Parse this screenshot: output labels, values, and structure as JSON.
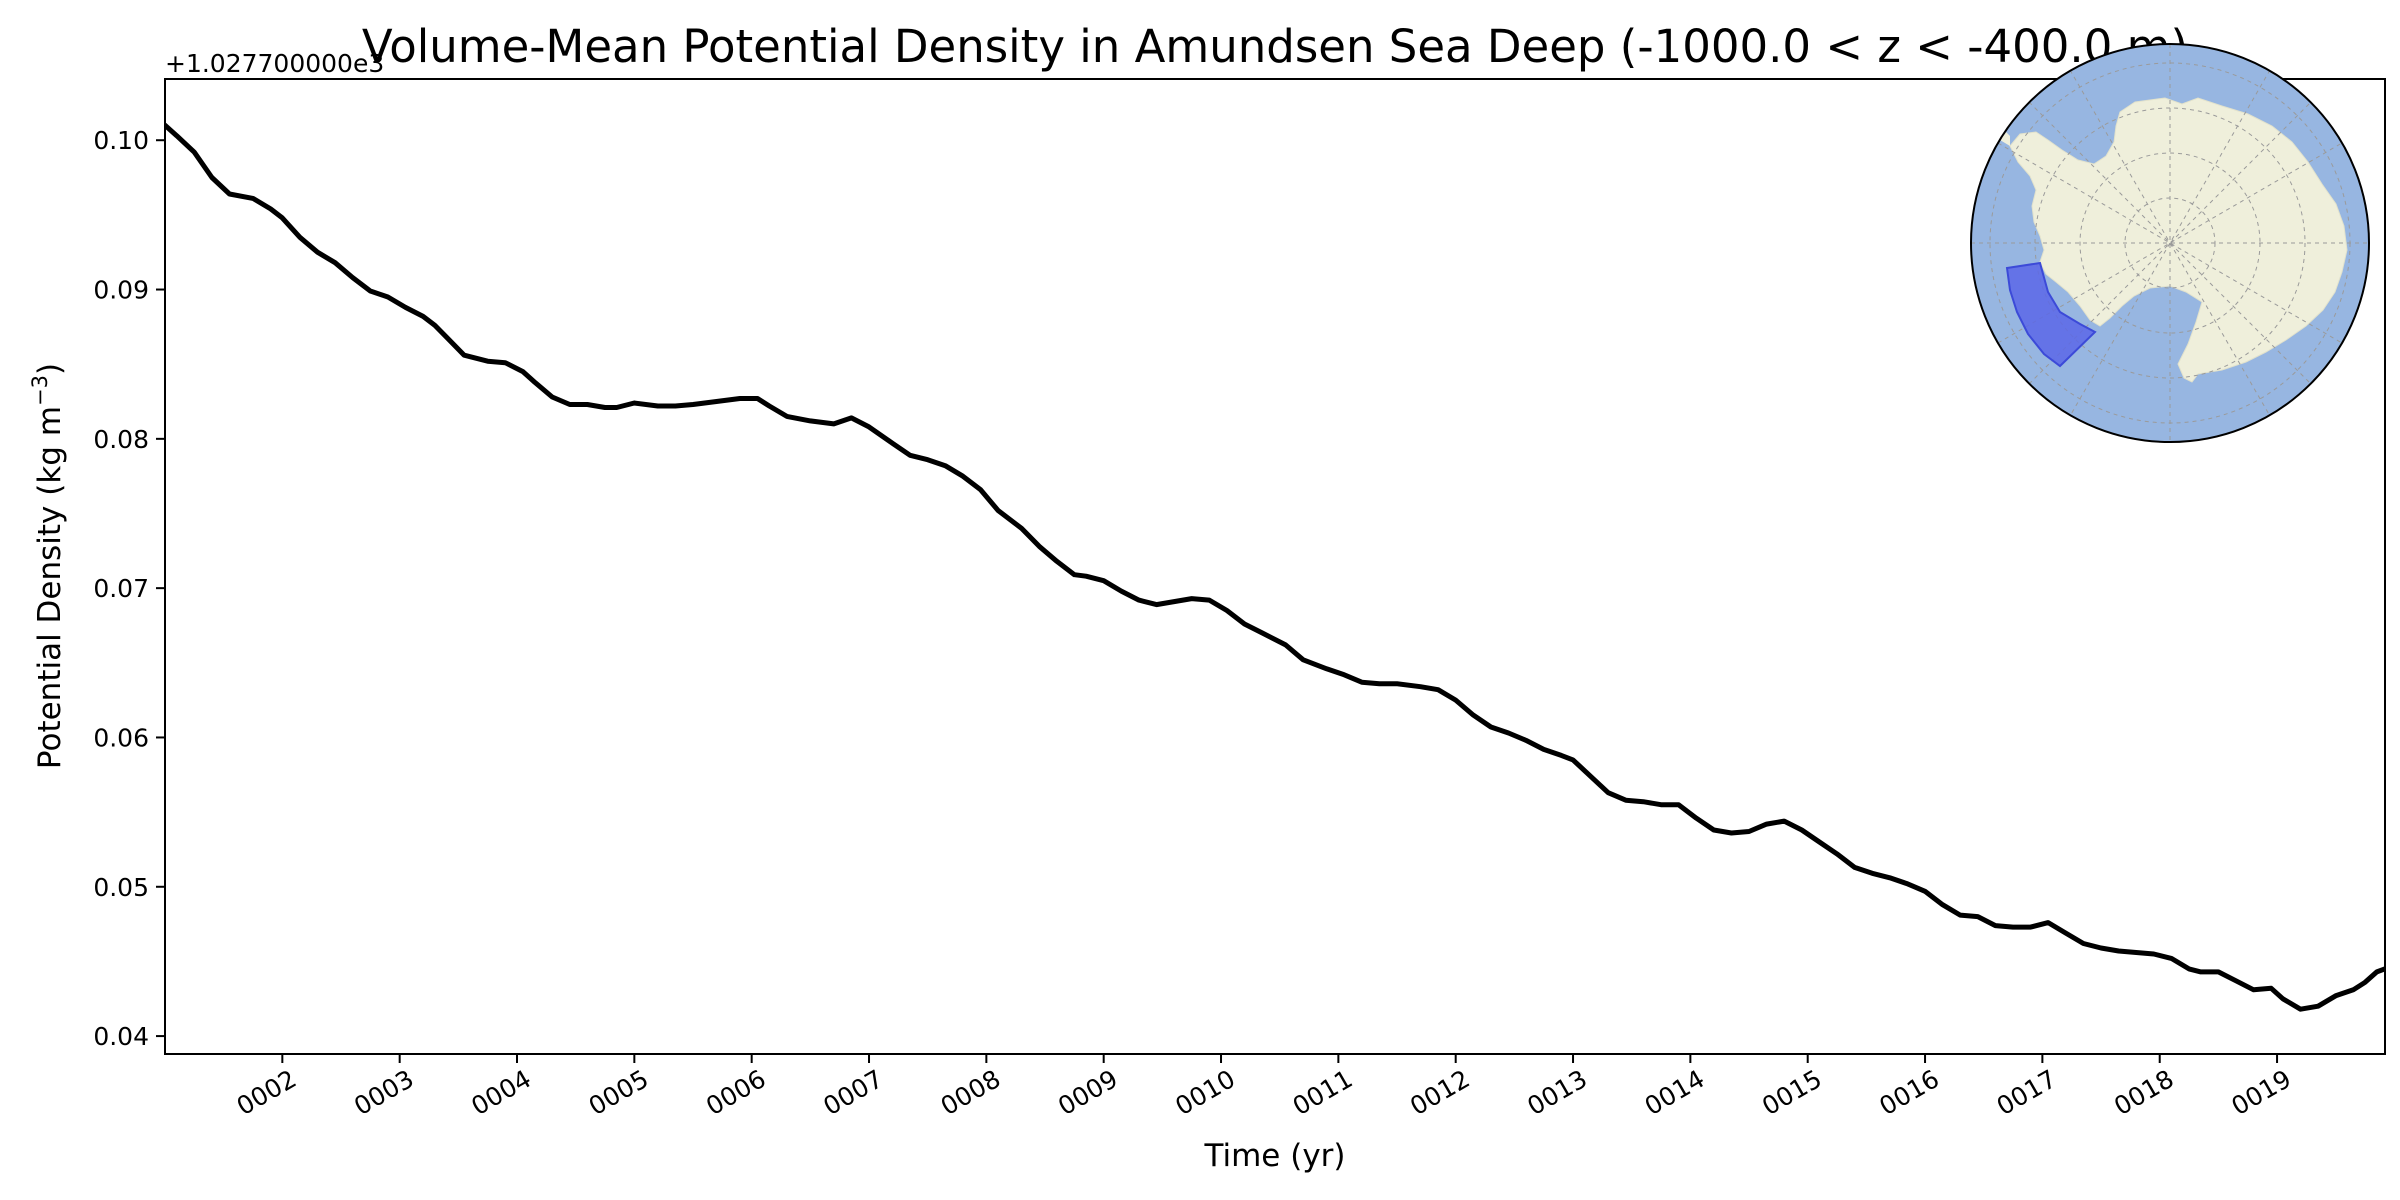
{
  "colors": {
    "line": "#000000",
    "ocean": "#97b6e1",
    "land": "#efefdb",
    "region_fill": "#5a67e8",
    "region_edge": "#3c4ad8",
    "graticule": "#9a9a9a"
  },
  "chart_data": {
    "type": "line",
    "title": "Volume-Mean Potential Density in Amundsen Sea Deep (-1000.0 < z < -400.0 m)",
    "xlabel": "Time (yr)",
    "ylabel_main": "Potential Density (kg m",
    "ylabel_sup": "−3",
    "ylabel_tail": ")",
    "offset_text": "+1.027700000e3",
    "xlim": [
      1.0,
      19.92
    ],
    "ylim": [
      0.0388,
      0.1041
    ],
    "x_ticks": [
      2,
      3,
      4,
      5,
      6,
      7,
      8,
      9,
      10,
      11,
      12,
      13,
      14,
      15,
      16,
      17,
      18,
      19
    ],
    "x_tick_labels": [
      "0002",
      "0003",
      "0004",
      "0005",
      "0006",
      "0007",
      "0008",
      "0009",
      "0010",
      "0011",
      "0012",
      "0013",
      "0014",
      "0015",
      "0016",
      "0017",
      "0018",
      "0019"
    ],
    "y_ticks": [
      0.04,
      0.05,
      0.06,
      0.07,
      0.08,
      0.09,
      0.1
    ],
    "y_tick_labels": [
      "0.04",
      "0.05",
      "0.06",
      "0.07",
      "0.08",
      "0.09",
      "0.10"
    ],
    "series": [
      {
        "name": "Amundsen Sea Deep",
        "x": [
          1.0,
          1.1,
          1.25,
          1.4,
          1.55,
          1.75,
          1.9,
          2.0,
          2.15,
          2.3,
          2.45,
          2.6,
          2.75,
          2.9,
          3.05,
          3.2,
          3.3,
          3.4,
          3.55,
          3.75,
          3.9,
          4.05,
          4.15,
          4.3,
          4.45,
          4.6,
          4.75,
          4.85,
          5.0,
          5.2,
          5.35,
          5.5,
          5.7,
          5.9,
          6.05,
          6.15,
          6.3,
          6.5,
          6.7,
          6.85,
          7.0,
          7.2,
          7.35,
          7.5,
          7.65,
          7.8,
          7.95,
          8.1,
          8.3,
          8.45,
          8.6,
          8.75,
          8.85,
          9.0,
          9.15,
          9.3,
          9.45,
          9.6,
          9.75,
          9.9,
          10.05,
          10.2,
          10.35,
          10.55,
          10.7,
          10.9,
          11.05,
          11.2,
          11.35,
          11.5,
          11.7,
          11.85,
          12.0,
          12.15,
          12.3,
          12.45,
          12.6,
          12.75,
          12.9,
          13.0,
          13.15,
          13.3,
          13.45,
          13.6,
          13.75,
          13.9,
          14.05,
          14.2,
          14.35,
          14.5,
          14.65,
          14.8,
          14.95,
          15.1,
          15.25,
          15.4,
          15.55,
          15.7,
          15.85,
          16.0,
          16.15,
          16.3,
          16.45,
          16.6,
          16.75,
          16.9,
          17.05,
          17.2,
          17.35,
          17.5,
          17.65,
          17.8,
          17.95,
          18.1,
          18.25,
          18.35,
          18.5,
          18.65,
          18.8,
          18.95,
          19.05,
          19.2,
          19.35,
          19.5,
          19.65,
          19.75,
          19.85,
          19.92
        ],
        "y": [
          0.101,
          0.1003,
          0.0992,
          0.0975,
          0.0964,
          0.0961,
          0.0954,
          0.0948,
          0.0935,
          0.0925,
          0.0918,
          0.0908,
          0.0899,
          0.0895,
          0.0888,
          0.0882,
          0.0876,
          0.0868,
          0.0856,
          0.0852,
          0.0851,
          0.0845,
          0.0838,
          0.0828,
          0.0823,
          0.0823,
          0.0821,
          0.0821,
          0.0824,
          0.0822,
          0.0822,
          0.0823,
          0.0825,
          0.0827,
          0.0827,
          0.0822,
          0.0815,
          0.0812,
          0.081,
          0.0814,
          0.0808,
          0.0797,
          0.0789,
          0.0786,
          0.0782,
          0.0775,
          0.0766,
          0.0752,
          0.074,
          0.0728,
          0.0718,
          0.0709,
          0.0708,
          0.0705,
          0.0698,
          0.0692,
          0.0689,
          0.0691,
          0.0693,
          0.0692,
          0.0685,
          0.0676,
          0.067,
          0.0662,
          0.0652,
          0.0646,
          0.0642,
          0.0637,
          0.0636,
          0.0636,
          0.0634,
          0.0632,
          0.0625,
          0.0615,
          0.0607,
          0.0603,
          0.0598,
          0.0592,
          0.0588,
          0.0585,
          0.0574,
          0.0563,
          0.0558,
          0.0557,
          0.0555,
          0.0555,
          0.0546,
          0.0538,
          0.0536,
          0.0537,
          0.0542,
          0.0544,
          0.0538,
          0.053,
          0.0522,
          0.0513,
          0.0509,
          0.0506,
          0.0502,
          0.0497,
          0.0488,
          0.0481,
          0.048,
          0.0474,
          0.0473,
          0.0473,
          0.0476,
          0.0469,
          0.0462,
          0.0459,
          0.0457,
          0.0456,
          0.0455,
          0.0452,
          0.0445,
          0.0443,
          0.0443,
          0.0437,
          0.0431,
          0.0432,
          0.0425,
          0.0418,
          0.042,
          0.0427,
          0.0431,
          0.0436,
          0.0443,
          0.0445
        ]
      }
    ]
  }
}
